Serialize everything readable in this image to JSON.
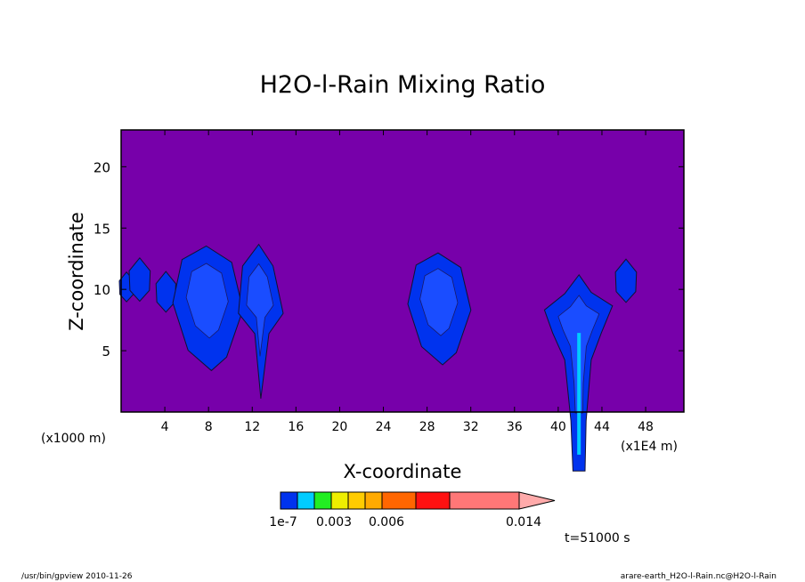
{
  "chart_data": {
    "type": "contour",
    "title": "H2O-l-Rain Mixing Ratio",
    "xlabel": "X-coordinate",
    "ylabel": "Z-coordinate",
    "x_unit_left": "(x1000 m)",
    "x_unit_right": "(x1E4 m)",
    "xlim": [
      0,
      51.5
    ],
    "ylim": [
      0,
      23
    ],
    "x_ticks": [
      4,
      8,
      12,
      16,
      20,
      24,
      28,
      32,
      36,
      40,
      44,
      48
    ],
    "x_tick_labels": [
      "4",
      "8",
      "12",
      "16",
      "20",
      "24",
      "28",
      "32",
      "36",
      "40",
      "44",
      "48"
    ],
    "y_ticks": [
      5,
      10,
      15,
      20
    ],
    "y_tick_labels": [
      "5",
      "10",
      "15",
      "20"
    ],
    "background_fill": "#7700aa",
    "contour_levels": [
      "1e-7",
      "0.003",
      "0.006",
      "0.014"
    ],
    "colorbar_colors": [
      "#0033ee",
      "#00ccff",
      "#22ee22",
      "#eeee00",
      "#ffcc00",
      "#ffaa00",
      "#ff6600",
      "#ff1111",
      "#ff7777",
      "#ffaaaa"
    ],
    "rain_cells": [
      {
        "x": 0.5,
        "z": 10.2,
        "peak_level": "1e-7"
      },
      {
        "x": 1.7,
        "z": 10.8,
        "peak_level": "1e-7"
      },
      {
        "x": 4.1,
        "z": 9.8,
        "peak_level": "1e-7"
      },
      {
        "x": 7.8,
        "z": 10.0,
        "peak_level": "0.003"
      },
      {
        "x": 12.6,
        "z": 9.7,
        "peak_level": "0.003"
      },
      {
        "x": 29.0,
        "z": 9.8,
        "peak_level": "0.003"
      },
      {
        "x": 41.9,
        "z": 7.0,
        "peak_level": "0.003"
      },
      {
        "x": 46.2,
        "z": 10.7,
        "peak_level": "1e-7"
      }
    ],
    "time_label": "t=51000 s"
  },
  "footer": {
    "left": "/usr/bin/gpview   2010-11-26",
    "right": "arare-earth_H2O-l-Rain.nc@H2O-l-Rain"
  }
}
